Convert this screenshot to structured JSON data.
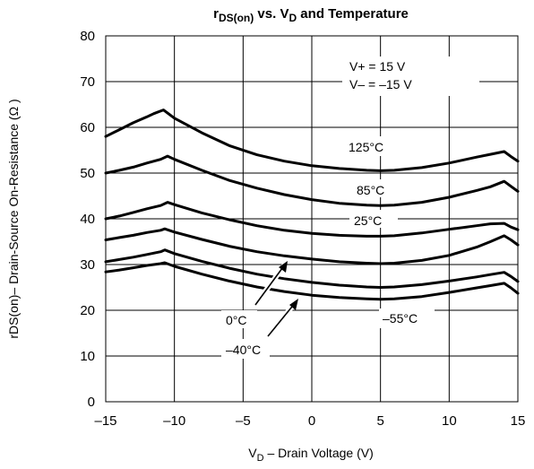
{
  "chart_data": {
    "type": "line",
    "title": {
      "main": "r",
      "main_sub": "DS(on)",
      "middle": " vs. V",
      "middle_sub": "D",
      "end": " and Temperature"
    },
    "xlabel": {
      "main": "V",
      "sub": "D",
      "rest": " – Drain Voltage (V)"
    },
    "ylabel": "rDS(on)– Drain-Source On-Resistance (Ω )",
    "xlim": [
      -15,
      15
    ],
    "ylim": [
      0,
      80
    ],
    "x_ticks": [
      -15,
      -10,
      -5,
      0,
      5,
      10,
      15
    ],
    "x_tick_labels": [
      "–15",
      "–10",
      "–5",
      "0",
      "5",
      "10",
      "15"
    ],
    "y_ticks": [
      0,
      10,
      20,
      30,
      40,
      50,
      60,
      70,
      80
    ],
    "y_tick_labels": [
      "0",
      "10",
      "20",
      "30",
      "40",
      "50",
      "60",
      "70",
      "80"
    ],
    "grid": true,
    "conditions": [
      "V+ = 15 V",
      "V– = –15 V"
    ],
    "series": [
      {
        "name": "125°C",
        "x": [
          -15,
          -14,
          -13,
          -12,
          -11.5,
          -10.8,
          -10,
          -8,
          -6,
          -4,
          -2,
          0,
          2,
          4,
          5,
          6,
          8,
          10,
          12,
          13,
          14,
          14.5,
          15
        ],
        "y": [
          58,
          59.5,
          61,
          62.3,
          63,
          63.8,
          62,
          58.8,
          56,
          54,
          52.6,
          51.6,
          51,
          50.6,
          50.5,
          50.6,
          51.2,
          52.2,
          53.5,
          54.1,
          54.7,
          53.6,
          52.6
        ]
      },
      {
        "name": "85°C",
        "x": [
          -15,
          -14,
          -13,
          -12,
          -11,
          -10.5,
          -10,
          -8,
          -6,
          -4,
          -2,
          0,
          2,
          4,
          5,
          6,
          8,
          10,
          12,
          13,
          14,
          14.5,
          15
        ],
        "y": [
          50,
          50.6,
          51.3,
          52.2,
          53,
          53.7,
          53,
          50.6,
          48.4,
          46.7,
          45.3,
          44.2,
          43.4,
          43,
          42.9,
          43,
          43.6,
          44.7,
          46.2,
          47,
          48.2,
          47.1,
          46
        ]
      },
      {
        "name": "25°C",
        "x": [
          -15,
          -14,
          -13,
          -12,
          -11,
          -10.5,
          -10,
          -8,
          -6,
          -4,
          -2,
          0,
          2,
          4,
          5,
          6,
          8,
          10,
          12,
          13,
          14,
          14.5,
          15
        ],
        "y": [
          40,
          40.6,
          41.4,
          42.2,
          42.9,
          43.6,
          43.1,
          41.3,
          39.8,
          38.5,
          37.5,
          36.8,
          36.4,
          36.2,
          36.2,
          36.3,
          36.9,
          37.7,
          38.5,
          38.9,
          39,
          38.2,
          37.6
        ]
      },
      {
        "name": "0°C",
        "x": [
          -15,
          -14,
          -13,
          -12,
          -11,
          -10.7,
          -10,
          -8,
          -6,
          -4,
          -2,
          0,
          2,
          4,
          5,
          6,
          8,
          10,
          12,
          13,
          14,
          14.5,
          15
        ],
        "y": [
          35.4,
          35.9,
          36.4,
          37,
          37.5,
          37.8,
          37.1,
          35.5,
          34,
          32.8,
          31.9,
          31.2,
          30.6,
          30.3,
          30.2,
          30.3,
          30.9,
          32,
          33.8,
          35,
          36.3,
          35.4,
          34.3
        ]
      },
      {
        "name": "–40°C",
        "x": [
          -15,
          -14,
          -13,
          -12,
          -11,
          -10.7,
          -10,
          -8,
          -6,
          -4,
          -2,
          0,
          2,
          4,
          5,
          6,
          8,
          10,
          12,
          13,
          14,
          14.5,
          15
        ],
        "y": [
          30.6,
          31.1,
          31.6,
          32.2,
          32.8,
          33.2,
          32.4,
          30.7,
          29.2,
          27.9,
          26.9,
          26.1,
          25.5,
          25.1,
          25,
          25.1,
          25.6,
          26.4,
          27.3,
          27.8,
          28.3,
          27.4,
          26.3
        ]
      },
      {
        "name": "–55°C",
        "x": [
          -15,
          -14,
          -13,
          -12,
          -11,
          -10.7,
          -10,
          -8,
          -6,
          -4,
          -2,
          0,
          2,
          4,
          5,
          6,
          8,
          10,
          12,
          13,
          14,
          14.5,
          15
        ],
        "y": [
          28.4,
          28.8,
          29.3,
          29.8,
          30.2,
          30.4,
          29.6,
          27.9,
          26.4,
          25.1,
          24.1,
          23.3,
          22.8,
          22.5,
          22.4,
          22.5,
          23,
          23.9,
          24.9,
          25.4,
          25.9,
          24.9,
          23.7
        ]
      }
    ]
  }
}
